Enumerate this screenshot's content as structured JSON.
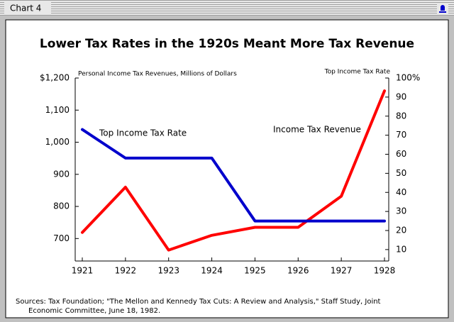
{
  "window_title": "Chart 4",
  "chart_data": {
    "type": "line",
    "title": "Lower Tax Rates in the 1920s Meant More Tax Revenue",
    "y_label": "Personal Income Tax Revenues, Millions of Dollars",
    "y2_label": "Top Income Tax Rate",
    "categories": [
      "1921",
      "1922",
      "1923",
      "1924",
      "1925",
      "1926",
      "1927",
      "1928"
    ],
    "series": [
      {
        "name": "Income Tax Revenue",
        "color": "#ff0000",
        "values": [
          719,
          860,
          664,
          710,
          735,
          735,
          832,
          1160
        ]
      },
      {
        "name": "Top Income Tax Rate",
        "color": "#0000cc",
        "axis": "y2",
        "values": [
          73,
          58,
          58,
          58,
          25,
          25,
          25,
          25
        ]
      }
    ],
    "ylim": [
      630,
      1200
    ],
    "yticks": [
      {
        "value": 700,
        "label": "700"
      },
      800,
      900,
      {
        "value": 1000,
        "label": "1,000"
      },
      {
        "value": 1100,
        "label": "1,100"
      },
      {
        "value": 1200,
        "label": "$1,200"
      }
    ],
    "y2lim": [
      4,
      100
    ],
    "y2ticks": [
      10,
      20,
      30,
      40,
      50,
      60,
      70,
      80,
      90,
      {
        "value": 100,
        "label": "100%"
      }
    ],
    "sources": [
      "Sources:  Tax Foundation; \"The Mellon and Kennedy Tax Cuts: A Review and Analysis,\" Staff Study, Joint",
      "Economic Committee,  June 18, 1982."
    ]
  }
}
